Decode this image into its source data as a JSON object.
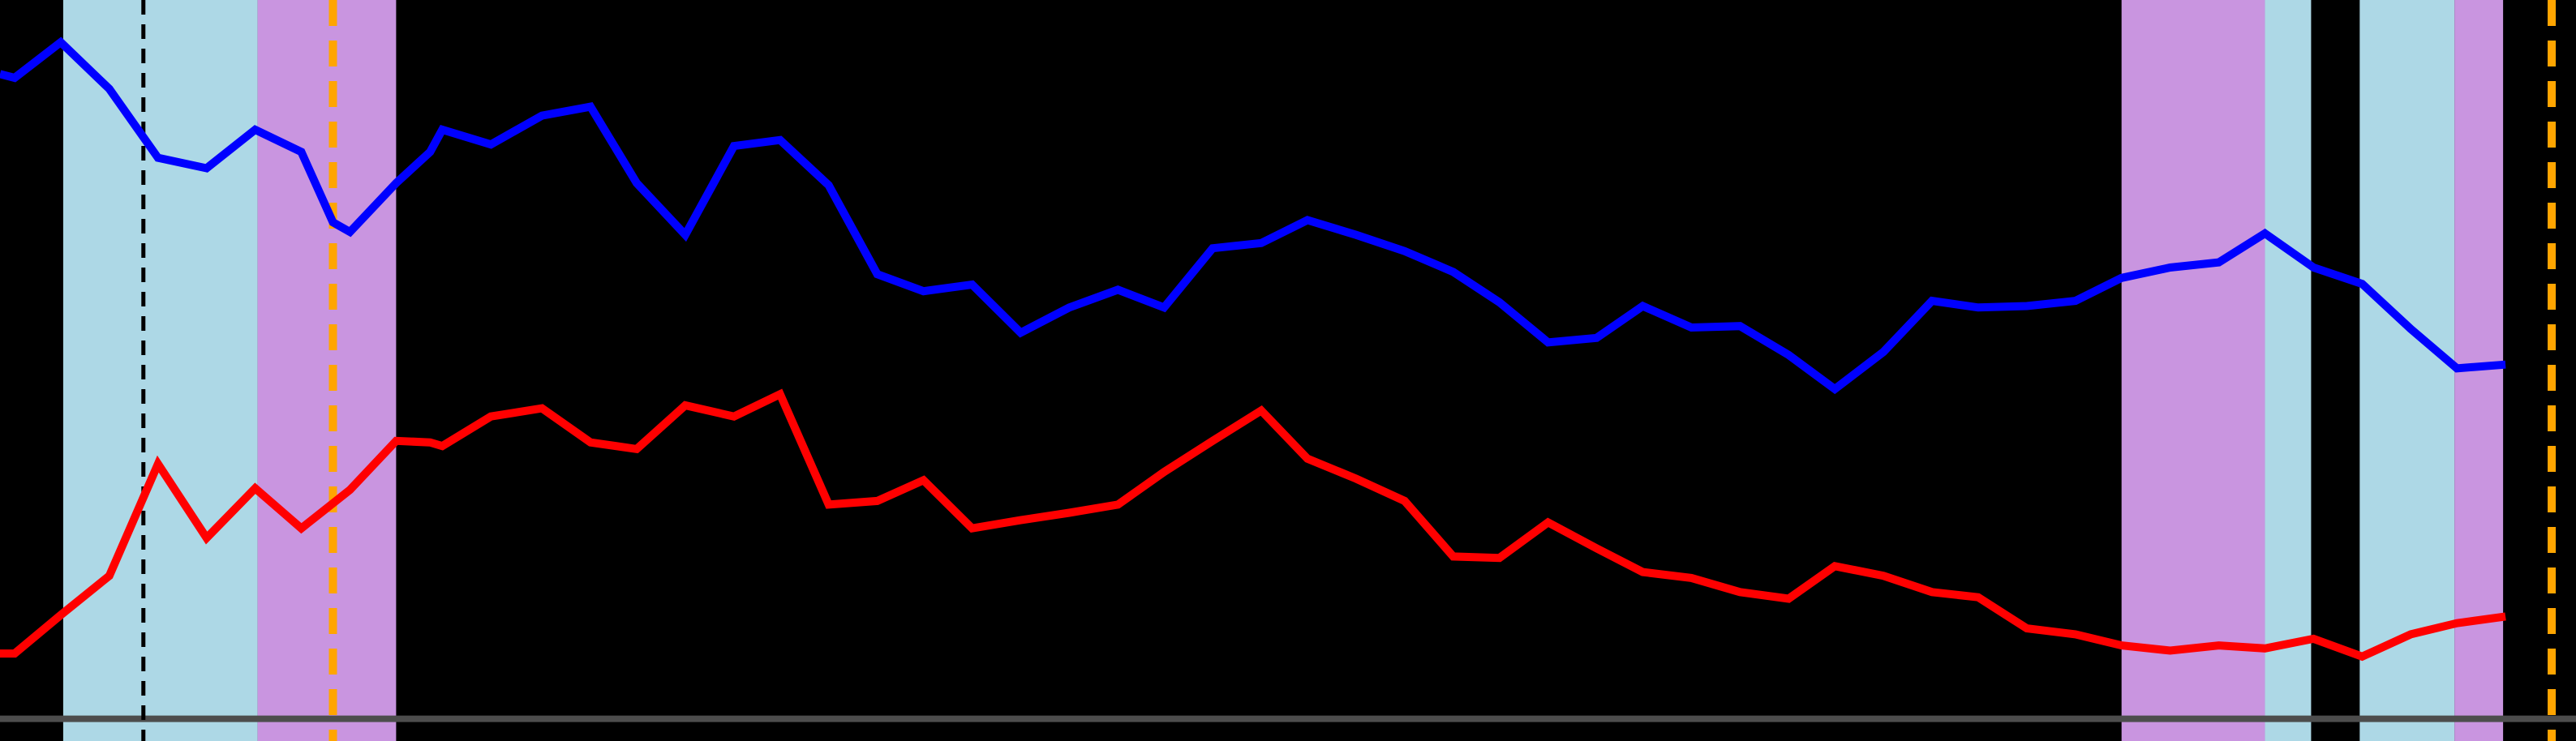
{
  "chart_data": {
    "type": "line",
    "title": "",
    "xlabel": "",
    "ylabel": "",
    "grid": false,
    "legend": "none",
    "xlim": [
      0,
      106
    ],
    "ylim": [
      0,
      100
    ],
    "background": "#000000",
    "baseline": {
      "y": 3,
      "color": "#4d4d4d"
    },
    "bands": [
      {
        "x0": 2.6,
        "x1": 10.6,
        "color": "#add8e6",
        "kind": "light-blue"
      },
      {
        "x0": 10.6,
        "x1": 16.3,
        "color": "#c995e0",
        "kind": "lavender"
      },
      {
        "x0": 87.3,
        "x1": 93.2,
        "color": "#c995e0",
        "kind": "lavender"
      },
      {
        "x0": 93.2,
        "x1": 95.1,
        "color": "#add8e6",
        "kind": "light-blue"
      },
      {
        "x0": 97.1,
        "x1": 101.0,
        "color": "#add8e6",
        "kind": "light-blue"
      },
      {
        "x0": 101.0,
        "x1": 103.0,
        "color": "#c995e0",
        "kind": "lavender"
      }
    ],
    "vlines": [
      {
        "x": 5.9,
        "color": "#000000",
        "style": "dashed"
      },
      {
        "x": 13.7,
        "color": "#ffa500",
        "style": "dashed"
      },
      {
        "x": 105.0,
        "color": "#ffa500",
        "style": "dashed"
      }
    ],
    "series": [
      {
        "color": "#0000ff",
        "x": [
          0,
          0.6,
          2.5,
          4.5,
          6.5,
          8.5,
          10.5,
          12.4,
          13.7,
          14.4,
          16.3,
          17.7,
          18.2,
          20.2,
          22.3,
          24.3,
          26.2,
          28.2,
          30.2,
          32.1,
          34.1,
          36.1,
          38.0,
          40.0,
          42.0,
          44.0,
          46.0,
          47.9,
          49.9,
          51.9,
          53.8,
          55.8,
          57.8,
          59.8,
          61.7,
          63.7,
          65.7,
          67.6,
          69.6,
          71.6,
          73.6,
          75.5,
          77.5,
          79.5,
          81.4,
          83.4,
          85.4,
          87.3,
          89.3,
          91.3,
          93.2,
          95.2,
          97.2,
          99.2,
          101.1,
          103.1
        ],
        "y": [
          90,
          89.5,
          94.3,
          88,
          78.7,
          77.3,
          82.5,
          79.5,
          70,
          68.7,
          75.3,
          79.5,
          82.5,
          80.5,
          84.4,
          85.6,
          75.3,
          68.3,
          80.3,
          81.1,
          75,
          63,
          60.7,
          61.6,
          55.1,
          58.5,
          60.9,
          58.5,
          66.5,
          67.2,
          70.3,
          68.3,
          66.1,
          63.3,
          59.2,
          53.8,
          54.4,
          58.7,
          55.8,
          56,
          52.1,
          47.5,
          52.5,
          59.4,
          58.5,
          58.7,
          59.4,
          62.5,
          63.9,
          64.6,
          68.5,
          63.9,
          61.7,
          55.6,
          50.3,
          50.8
        ]
      },
      {
        "color": "#ff0000",
        "x": [
          0,
          0.6,
          2.5,
          4.5,
          6.5,
          8.5,
          10.5,
          12.4,
          14.4,
          16.3,
          17.7,
          18.2,
          20.2,
          22.3,
          24.3,
          26.2,
          28.2,
          30.2,
          32.1,
          34.1,
          36.1,
          38.0,
          40.0,
          42.0,
          44.0,
          46.0,
          47.9,
          49.9,
          51.9,
          53.8,
          55.8,
          57.8,
          59.8,
          61.7,
          63.7,
          65.7,
          67.6,
          69.6,
          71.6,
          73.6,
          75.5,
          77.5,
          79.5,
          81.4,
          83.4,
          85.4,
          87.3,
          89.3,
          91.3,
          93.2,
          95.2,
          97.2,
          99.2,
          101.1,
          103.1
        ],
        "y": [
          11.8,
          11.8,
          17,
          22.3,
          37.4,
          27.4,
          34.1,
          28.7,
          33.9,
          40.5,
          40.3,
          39.8,
          43.8,
          44.9,
          40.3,
          39.4,
          45.3,
          43.8,
          46.8,
          31.9,
          32.4,
          35.2,
          28.7,
          29.8,
          30.8,
          31.9,
          36.3,
          40.5,
          44.6,
          38.1,
          35.4,
          32.4,
          24.9,
          24.7,
          29.5,
          26,
          22.8,
          22,
          20.1,
          19.2,
          23.6,
          22.3,
          20.1,
          19.4,
          15.2,
          14.4,
          12.9,
          12.2,
          12.9,
          12.5,
          13.8,
          11.4,
          14.4,
          15.9,
          16.8
        ]
      }
    ]
  }
}
